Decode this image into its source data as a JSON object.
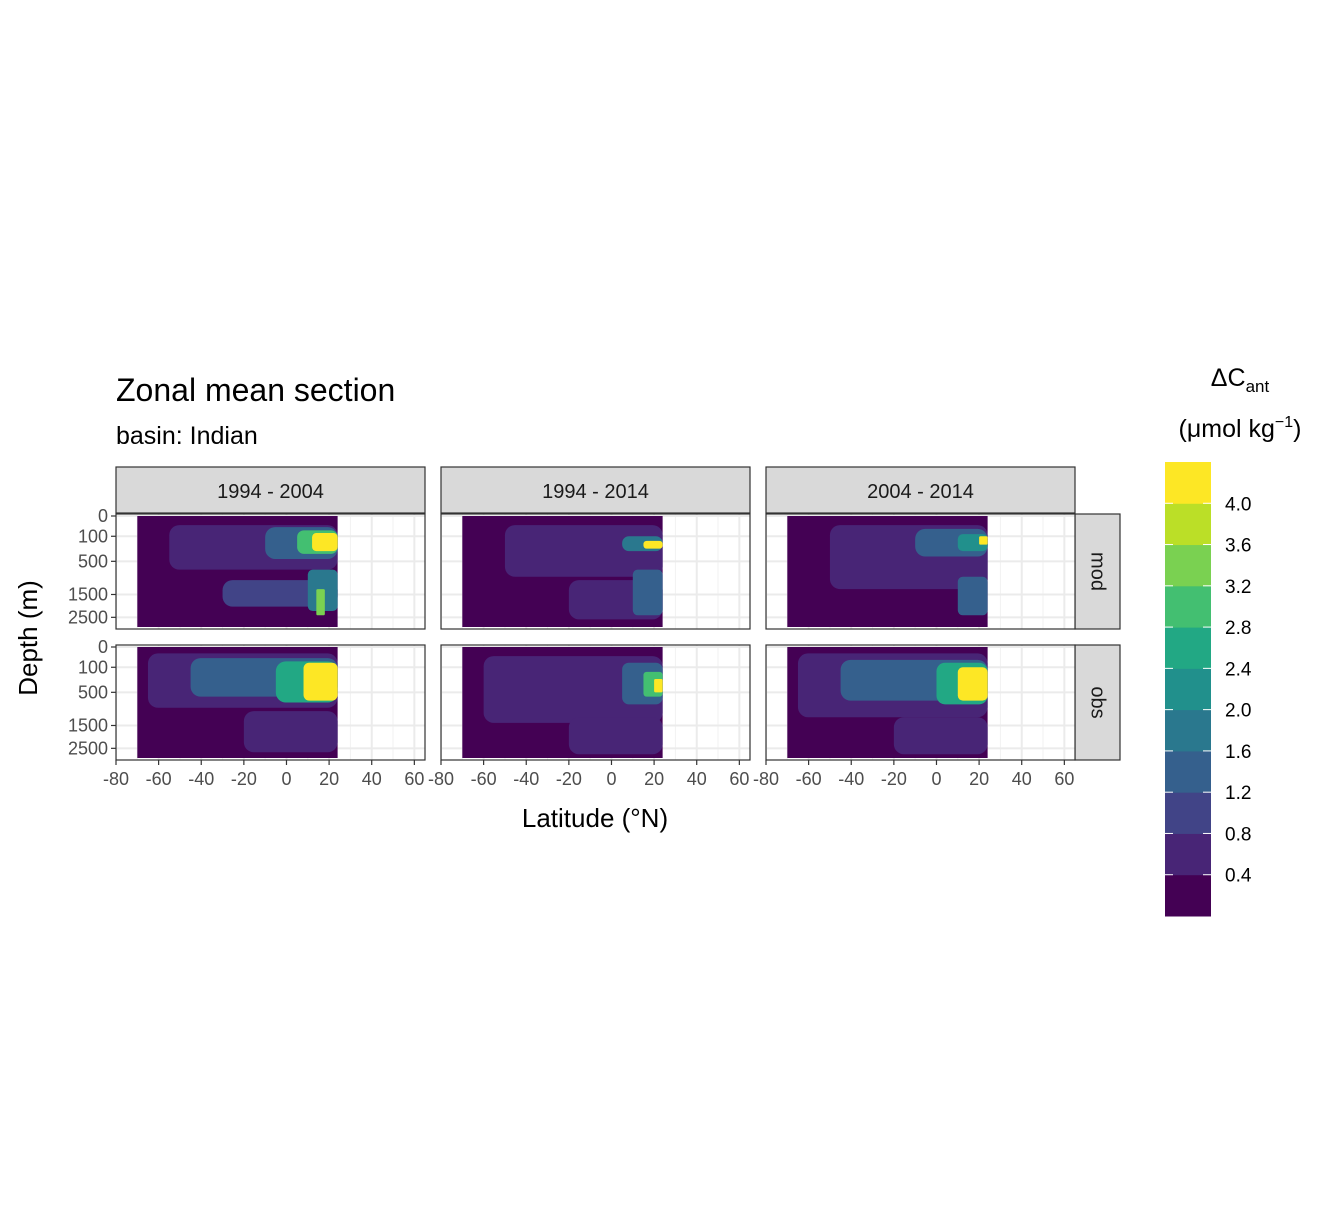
{
  "chart_data": {
    "type": "heatmap",
    "title": "Zonal mean section",
    "subtitle": "basin: Indian",
    "xlabel": "Latitude (°N)",
    "ylabel": "Depth (m)",
    "xlim": [
      -80,
      65
    ],
    "x_ticks": [
      -80,
      -60,
      -40,
      -20,
      0,
      20,
      40,
      60
    ],
    "x_tick_labels": [
      "-80",
      "-60",
      "-40",
      "-20",
      "0",
      "20",
      "40",
      "60"
    ],
    "y_ticks": [
      0,
      100,
      500,
      1500,
      2500
    ],
    "y_tick_labels": [
      "0",
      "100",
      "500",
      "1500",
      "2500"
    ],
    "y_scale": "sqrt, reversed",
    "grid": true,
    "columns": [
      "1994 - 2004",
      "1994 - 2014",
      "2004 - 2014"
    ],
    "rows": [
      "mod",
      "obs"
    ],
    "data_extent": {
      "lat_min": -70,
      "lat_max": 24,
      "depth_min": 0,
      "depth_max": 3000
    },
    "legend": {
      "title_main": "ΔC",
      "title_sub": "ant",
      "unit_open": "(μmol kg",
      "unit_sup": "−1",
      "unit_close": ")",
      "position": "right",
      "breaks": [
        0.4,
        0.8,
        1.2,
        1.6,
        2.0,
        2.4,
        2.8,
        3.2,
        3.6,
        4.0
      ],
      "labels": [
        "0.4",
        "0.8",
        "1.2",
        "1.6",
        "2.0",
        "2.4",
        "2.8",
        "3.2",
        "3.6",
        "4.0"
      ],
      "colors": [
        "#440154",
        "#482576",
        "#414487",
        "#35608D",
        "#2A788E",
        "#21908C",
        "#22A884",
        "#43BF71",
        "#7AD151",
        "#BBDF27",
        "#FDE725"
      ]
    },
    "panels": [
      {
        "row": "mod",
        "col": "1994 - 2004",
        "features": [
          {
            "lat_from": -70,
            "lat_to": 24,
            "depth_from": 0,
            "depth_to": 3000,
            "value": 0.2
          },
          {
            "lat_from": -55,
            "lat_to": 24,
            "depth_from": 20,
            "depth_to": 700,
            "value": 0.5
          },
          {
            "lat_from": -10,
            "lat_to": 24,
            "depth_from": 30,
            "depth_to": 450,
            "value": 1.4
          },
          {
            "lat_from": 5,
            "lat_to": 24,
            "depth_from": 50,
            "depth_to": 350,
            "value": 3.0
          },
          {
            "lat_from": 12,
            "lat_to": 24,
            "depth_from": 70,
            "depth_to": 300,
            "value": 4.4
          },
          {
            "lat_from": -30,
            "lat_to": 24,
            "depth_from": 1000,
            "depth_to": 2000,
            "value": 0.9
          },
          {
            "lat_from": 10,
            "lat_to": 24,
            "depth_from": 700,
            "depth_to": 2200,
            "value": 1.9
          },
          {
            "lat_from": 14,
            "lat_to": 18,
            "depth_from": 1300,
            "depth_to": 2400,
            "value": 3.2
          }
        ]
      },
      {
        "row": "mod",
        "col": "1994 - 2014",
        "features": [
          {
            "lat_from": -70,
            "lat_to": 24,
            "depth_from": 0,
            "depth_to": 3000,
            "value": 0.2
          },
          {
            "lat_from": -50,
            "lat_to": 24,
            "depth_from": 20,
            "depth_to": 900,
            "value": 0.6
          },
          {
            "lat_from": -20,
            "lat_to": 24,
            "depth_from": 1000,
            "depth_to": 2600,
            "value": 0.5
          },
          {
            "lat_from": 5,
            "lat_to": 24,
            "depth_from": 100,
            "depth_to": 300,
            "value": 1.6
          },
          {
            "lat_from": 15,
            "lat_to": 24,
            "depth_from": 150,
            "depth_to": 260,
            "value": 4.4
          },
          {
            "lat_from": 10,
            "lat_to": 24,
            "depth_from": 700,
            "depth_to": 2400,
            "value": 1.4
          }
        ]
      },
      {
        "row": "mod",
        "col": "2004 - 2014",
        "features": [
          {
            "lat_from": -70,
            "lat_to": 24,
            "depth_from": 0,
            "depth_to": 3000,
            "value": 0.2
          },
          {
            "lat_from": -50,
            "lat_to": 24,
            "depth_from": 20,
            "depth_to": 1300,
            "value": 0.6
          },
          {
            "lat_from": -10,
            "lat_to": 24,
            "depth_from": 40,
            "depth_to": 400,
            "value": 1.2
          },
          {
            "lat_from": 10,
            "lat_to": 24,
            "depth_from": 80,
            "depth_to": 300,
            "value": 2.2
          },
          {
            "lat_from": 20,
            "lat_to": 24,
            "depth_from": 100,
            "depth_to": 200,
            "value": 4.4
          },
          {
            "lat_from": 10,
            "lat_to": 24,
            "depth_from": 900,
            "depth_to": 2400,
            "value": 1.4
          }
        ]
      },
      {
        "row": "obs",
        "col": "1994 - 2004",
        "features": [
          {
            "lat_from": -70,
            "lat_to": 24,
            "depth_from": 0,
            "depth_to": 3000,
            "value": 0.2
          },
          {
            "lat_from": -65,
            "lat_to": 24,
            "depth_from": 10,
            "depth_to": 900,
            "value": 0.7
          },
          {
            "lat_from": -20,
            "lat_to": 24,
            "depth_from": 1000,
            "depth_to": 2700,
            "value": 0.5
          },
          {
            "lat_from": -45,
            "lat_to": 24,
            "depth_from": 30,
            "depth_to": 600,
            "value": 1.4
          },
          {
            "lat_from": -5,
            "lat_to": 24,
            "depth_from": 50,
            "depth_to": 750,
            "value": 2.6
          },
          {
            "lat_from": 8,
            "lat_to": 24,
            "depth_from": 60,
            "depth_to": 700,
            "value": 4.4
          }
        ]
      },
      {
        "row": "obs",
        "col": "1994 - 2014",
        "features": [
          {
            "lat_from": -70,
            "lat_to": 24,
            "depth_from": 0,
            "depth_to": 3000,
            "value": 0.2
          },
          {
            "lat_from": -60,
            "lat_to": 24,
            "depth_from": 20,
            "depth_to": 1400,
            "value": 0.6
          },
          {
            "lat_from": -20,
            "lat_to": 24,
            "depth_from": 1200,
            "depth_to": 2800,
            "value": 0.5
          },
          {
            "lat_from": 5,
            "lat_to": 24,
            "depth_from": 60,
            "depth_to": 800,
            "value": 1.5
          },
          {
            "lat_from": 15,
            "lat_to": 24,
            "depth_from": 150,
            "depth_to": 600,
            "value": 3.0
          },
          {
            "lat_from": 20,
            "lat_to": 24,
            "depth_from": 250,
            "depth_to": 500,
            "value": 4.4
          }
        ]
      },
      {
        "row": "obs",
        "col": "2004 - 2014",
        "features": [
          {
            "lat_from": -70,
            "lat_to": 24,
            "depth_from": 0,
            "depth_to": 3000,
            "value": 0.2
          },
          {
            "lat_from": -65,
            "lat_to": 24,
            "depth_from": 10,
            "depth_to": 1200,
            "value": 0.7
          },
          {
            "lat_from": -20,
            "lat_to": 24,
            "depth_from": 1200,
            "depth_to": 2800,
            "value": 0.5
          },
          {
            "lat_from": -45,
            "lat_to": 24,
            "depth_from": 40,
            "depth_to": 700,
            "value": 1.3
          },
          {
            "lat_from": 0,
            "lat_to": 24,
            "depth_from": 60,
            "depth_to": 800,
            "value": 2.6
          },
          {
            "lat_from": 10,
            "lat_to": 24,
            "depth_from": 100,
            "depth_to": 700,
            "value": 4.4
          }
        ]
      }
    ]
  }
}
